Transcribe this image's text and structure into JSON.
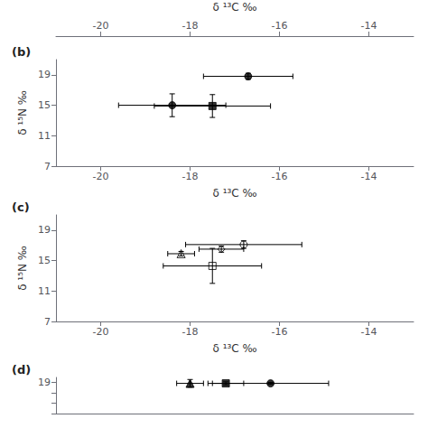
{
  "chart_data": [
    {
      "type": "axis",
      "xlabel": "δ ¹³C ‰",
      "xlim": [
        -21,
        -13
      ],
      "xticks": [
        -20,
        -18,
        -16,
        -14
      ]
    },
    {
      "type": "scatter",
      "title": "(b)",
      "xlabel": "δ ¹³C ‰",
      "ylabel": "δ ¹⁵N ‰",
      "xlim": [
        -21,
        -13
      ],
      "xticks": [
        -20,
        -18,
        -16,
        -14
      ],
      "ylim": [
        7,
        21
      ],
      "yticks": [
        7,
        11,
        15,
        19
      ],
      "grid": false,
      "color": "black",
      "series": [
        {
          "x": [
            -16.7
          ],
          "values": [
            18.8
          ],
          "xerr": [
            1.0
          ],
          "yerr": [
            0.4
          ],
          "marker": "circle"
        },
        {
          "x": [
            -18.4
          ],
          "values": [
            15.0
          ],
          "xerr": [
            1.2
          ],
          "yerr": [
            1.5
          ],
          "marker": "circle"
        },
        {
          "x": [
            -17.5
          ],
          "values": [
            14.9
          ],
          "xerr": [
            1.3
          ],
          "yerr": [
            1.5
          ],
          "marker": "square"
        }
      ]
    },
    {
      "type": "scatter",
      "title": "(c)",
      "xlabel": "δ ¹³C ‰",
      "ylabel": "δ ¹⁵N ‰",
      "xlim": [
        -21,
        -13
      ],
      "xticks": [
        -20,
        -18,
        -16,
        -14
      ],
      "ylim": [
        7,
        21
      ],
      "yticks": [
        7,
        11,
        15,
        19
      ],
      "grid": false,
      "color": "black",
      "series": [
        {
          "x": [
            -16.8
          ],
          "values": [
            17.1
          ],
          "xerr": [
            1.3
          ],
          "yerr": [
            0.5
          ],
          "marker": "open_circle"
        },
        {
          "x": [
            -17.3
          ],
          "values": [
            16.5
          ],
          "xerr": [
            0.5
          ],
          "yerr": [
            0.4
          ],
          "marker": "open_diamond"
        },
        {
          "x": [
            -18.2
          ],
          "values": [
            15.9
          ],
          "xerr": [
            0.3
          ],
          "yerr": [
            0.3
          ],
          "marker": "open_triangle"
        },
        {
          "x": [
            -17.5
          ],
          "values": [
            14.3
          ],
          "xerr": [
            1.1
          ],
          "yerr": [
            2.3
          ],
          "marker": "open_square"
        }
      ]
    },
    {
      "type": "scatter",
      "title": "(d)",
      "xlim": [
        -21,
        -13
      ],
      "ylim": [
        7,
        21
      ],
      "yticks": [
        {
          "value": 7,
          "label": null
        },
        {
          "value": 11,
          "label": null
        },
        {
          "value": 15,
          "label": null
        },
        19
      ],
      "tick_labels": "y",
      "grid": false,
      "color": "black",
      "series": [
        {
          "x": [
            -18.0
          ],
          "values": [
            18.7
          ],
          "xerr": [
            0.3
          ],
          "yerr": [
            1.5
          ],
          "marker": "triangle"
        },
        {
          "x": [
            -17.2
          ],
          "values": [
            18.7
          ],
          "xerr": [
            0.4
          ],
          "yerr": [
            0.6
          ],
          "marker": "square"
        },
        {
          "x": [
            -16.2
          ],
          "values": [
            18.7
          ],
          "xerr": [
            1.3
          ],
          "yerr": [
            0.4
          ],
          "marker": "circle"
        }
      ]
    }
  ]
}
